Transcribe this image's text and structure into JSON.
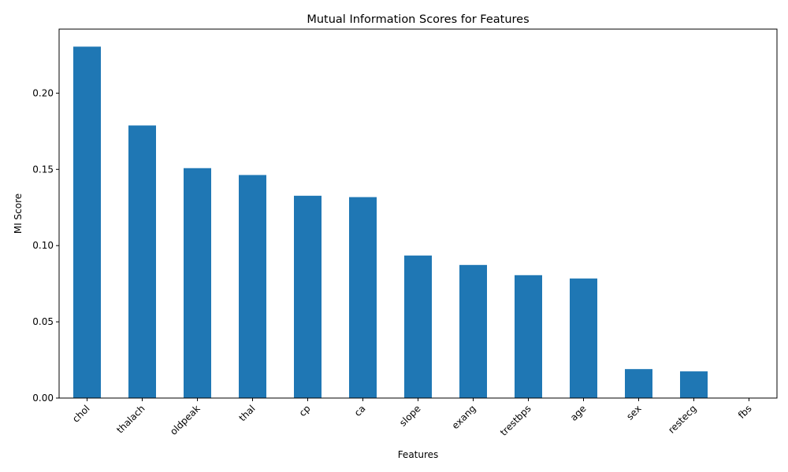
{
  "chart_data": {
    "type": "bar",
    "title": "Mutual Information Scores for Features",
    "xlabel": "Features",
    "ylabel": "MI Score",
    "categories": [
      "chol",
      "thalach",
      "oldpeak",
      "thal",
      "cp",
      "ca",
      "slope",
      "exang",
      "trestbps",
      "age",
      "sex",
      "restecg",
      "fbs"
    ],
    "values": [
      0.2305,
      0.1788,
      0.1508,
      0.1463,
      0.1327,
      0.1318,
      0.0935,
      0.0873,
      0.0806,
      0.0784,
      0.019,
      0.0175,
      0.0
    ],
    "ylim": [
      0,
      0.242
    ],
    "yticks": [
      0.0,
      0.05,
      0.1,
      0.15,
      0.2
    ],
    "ytick_labels": [
      "0.00",
      "0.05",
      "0.10",
      "0.15",
      "0.20"
    ],
    "bar_color": "#1f77b4",
    "grid": false,
    "legend": "none"
  }
}
